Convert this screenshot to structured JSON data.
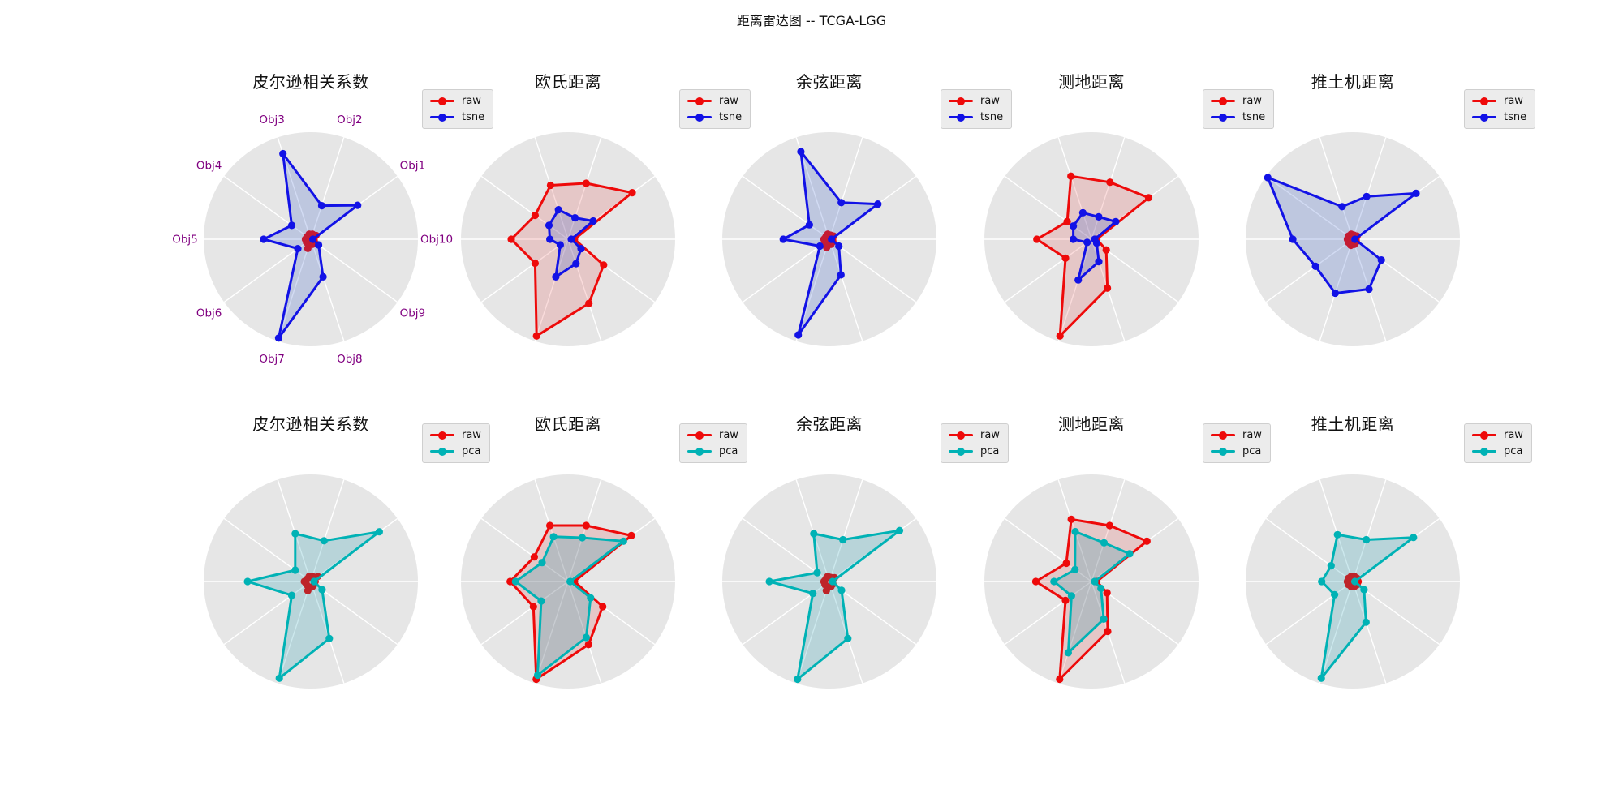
{
  "figure_title": "距离雷达图 -- TCGA-LGG",
  "chart_data": {
    "type": "radar-grid",
    "grid_shape": {
      "rows": 2,
      "cols": 5
    },
    "categories": [
      "Obj1",
      "Obj2",
      "Obj3",
      "Obj4",
      "Obj5",
      "Obj6",
      "Obj7",
      "Obj8",
      "Obj9",
      "Obj10"
    ],
    "angles_deg": [
      36,
      72,
      108,
      144,
      180,
      216,
      252,
      288,
      324,
      360
    ],
    "rlim": [
      0,
      1
    ],
    "radial_ticks_shown": false,
    "legend_position": "upper-right",
    "disc_color": "#e6e6e6",
    "spoke_color": "#ffffff",
    "axis_label_color": "#800080",
    "series_colors": {
      "raw": "#ee0a0a",
      "tsne": "#1212e6",
      "pca": "#00b2b5"
    },
    "series_fills": {
      "raw": "rgba(222,40,40,0.16)",
      "tsne": "rgba(50,90,200,0.22)",
      "pca": "rgba(0,140,165,0.20)"
    },
    "rows": [
      {
        "legend_labels": [
          "raw",
          "tsne"
        ],
        "subplots": [
          {
            "title": "皮尔逊相关系数",
            "show_axis_labels": true,
            "series": [
              {
                "name": "raw",
                "values": [
                  0.06,
                  0.05,
                  0.05,
                  0.04,
                  0.05,
                  0.05,
                  0.09,
                  0.05,
                  0.04,
                  0.03
                ]
              },
              {
                "name": "tsne",
                "values": [
                  0.54,
                  0.33,
                  0.84,
                  0.22,
                  0.44,
                  0.15,
                  0.97,
                  0.37,
                  0.09,
                  0.02
                ]
              }
            ]
          },
          {
            "title": "欧氏距离",
            "show_axis_labels": false,
            "series": [
              {
                "name": "raw",
                "values": [
                  0.74,
                  0.55,
                  0.53,
                  0.38,
                  0.53,
                  0.38,
                  0.95,
                  0.63,
                  0.41,
                  0.06
                ]
              },
              {
                "name": "tsne",
                "values": [
                  0.29,
                  0.21,
                  0.29,
                  0.22,
                  0.17,
                  0.09,
                  0.37,
                  0.24,
                  0.15,
                  0.03
                ]
              }
            ]
          },
          {
            "title": "余弦距离",
            "show_axis_labels": false,
            "series": [
              {
                "name": "raw",
                "values": [
                  0.05,
                  0.04,
                  0.05,
                  0.04,
                  0.05,
                  0.05,
                  0.08,
                  0.05,
                  0.04,
                  0.03
                ]
              },
              {
                "name": "tsne",
                "values": [
                  0.56,
                  0.36,
                  0.86,
                  0.23,
                  0.43,
                  0.11,
                  0.94,
                  0.35,
                  0.11,
                  0.02
                ]
              }
            ]
          },
          {
            "title": "测地距离",
            "show_axis_labels": false,
            "series": [
              {
                "name": "raw",
                "values": [
                  0.66,
                  0.56,
                  0.62,
                  0.28,
                  0.51,
                  0.3,
                  0.95,
                  0.48,
                  0.17,
                  0.05
                ]
              },
              {
                "name": "tsne",
                "values": [
                  0.28,
                  0.22,
                  0.26,
                  0.21,
                  0.17,
                  0.05,
                  0.4,
                  0.22,
                  0.06,
                  0.03
                ]
              }
            ]
          },
          {
            "title": "推土机距离",
            "show_axis_labels": false,
            "series": [
              {
                "name": "raw",
                "values": [
                  0.05,
                  0.04,
                  0.05,
                  0.05,
                  0.05,
                  0.05,
                  0.06,
                  0.05,
                  0.04,
                  0.03
                ]
              },
              {
                "name": "tsne",
                "values": [
                  0.73,
                  0.42,
                  0.32,
                  0.98,
                  0.56,
                  0.43,
                  0.53,
                  0.49,
                  0.33,
                  0.02
                ]
              }
            ]
          }
        ]
      },
      {
        "legend_labels": [
          "raw",
          "pca"
        ],
        "subplots": [
          {
            "title": "皮尔逊相关系数",
            "show_axis_labels": false,
            "series": [
              {
                "name": "raw",
                "values": [
                  0.08,
                  0.05,
                  0.05,
                  0.04,
                  0.06,
                  0.05,
                  0.09,
                  0.05,
                  0.04,
                  0.04
                ]
              },
              {
                "name": "pca",
                "values": [
                  0.79,
                  0.4,
                  0.47,
                  0.18,
                  0.59,
                  0.22,
                  0.95,
                  0.56,
                  0.13,
                  0.03
                ]
              }
            ]
          },
          {
            "title": "欧氏距离",
            "show_axis_labels": false,
            "series": [
              {
                "name": "raw",
                "values": [
                  0.73,
                  0.55,
                  0.55,
                  0.39,
                  0.54,
                  0.4,
                  0.96,
                  0.62,
                  0.4,
                  0.06
                ]
              },
              {
                "name": "pca",
                "values": [
                  0.64,
                  0.43,
                  0.44,
                  0.3,
                  0.49,
                  0.31,
                  0.92,
                  0.55,
                  0.26,
                  0.02
                ]
              }
            ]
          },
          {
            "title": "余弦距离",
            "show_axis_labels": false,
            "series": [
              {
                "name": "raw",
                "values": [
                  0.06,
                  0.04,
                  0.05,
                  0.04,
                  0.05,
                  0.05,
                  0.09,
                  0.05,
                  0.04,
                  0.03
                ]
              },
              {
                "name": "pca",
                "values": [
                  0.81,
                  0.41,
                  0.47,
                  0.14,
                  0.56,
                  0.19,
                  0.96,
                  0.56,
                  0.14,
                  0.03
                ]
              }
            ]
          },
          {
            "title": "测地距离",
            "show_axis_labels": false,
            "series": [
              {
                "name": "raw",
                "values": [
                  0.64,
                  0.55,
                  0.61,
                  0.29,
                  0.52,
                  0.3,
                  0.96,
                  0.49,
                  0.18,
                  0.05
                ]
              },
              {
                "name": "pca",
                "values": [
                  0.44,
                  0.38,
                  0.49,
                  0.19,
                  0.35,
                  0.23,
                  0.7,
                  0.37,
                  0.11,
                  0.03
                ]
              }
            ]
          },
          {
            "title": "推土机距离",
            "show_axis_labels": false,
            "series": [
              {
                "name": "raw",
                "values": [
                  0.05,
                  0.05,
                  0.05,
                  0.05,
                  0.05,
                  0.05,
                  0.05,
                  0.05,
                  0.05,
                  0.05
                ]
              },
              {
                "name": "pca",
                "values": [
                  0.7,
                  0.41,
                  0.46,
                  0.25,
                  0.29,
                  0.21,
                  0.95,
                  0.4,
                  0.13,
                  0.02
                ]
              }
            ]
          }
        ]
      }
    ]
  }
}
